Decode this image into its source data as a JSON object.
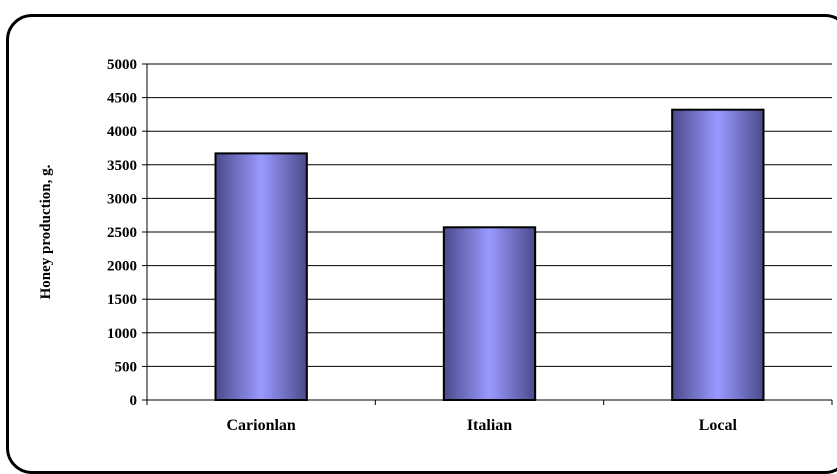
{
  "chart_data": {
    "type": "bar",
    "title": "",
    "xlabel": "",
    "ylabel": "Honey production, g.",
    "categories": [
      "Carionlan",
      "Italian",
      "Local"
    ],
    "values": [
      3670,
      2570,
      4320
    ],
    "ylim": [
      0,
      5000
    ],
    "ytick_step": 500,
    "yticks": [
      "0",
      "500",
      "1000",
      "1500",
      "2000",
      "2500",
      "3000",
      "3500",
      "4000",
      "4500",
      "5000"
    ],
    "grid": true,
    "legend": "none",
    "bar_color_edge": "#4a4a8c",
    "bar_color_center": "#9a9aff"
  }
}
